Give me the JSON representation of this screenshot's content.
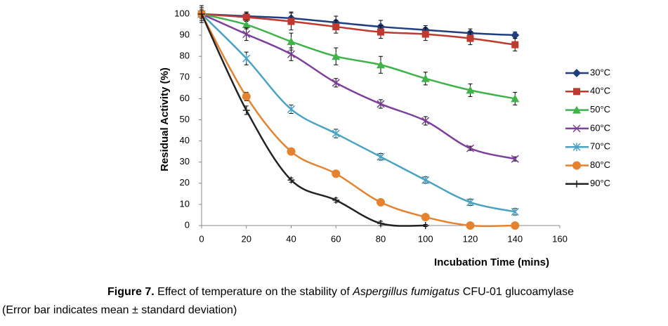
{
  "chart_data": {
    "type": "line",
    "xlabel": "Incubation Time (mins)",
    "ylabel": "Residual Activity (%)",
    "x": [
      0,
      20,
      40,
      60,
      80,
      100,
      120,
      140
    ],
    "xlim": [
      0,
      160
    ],
    "xticks": [
      0,
      20,
      40,
      60,
      80,
      100,
      120,
      140,
      160
    ],
    "ylim": [
      0,
      100
    ],
    "yticks": [
      0,
      10,
      20,
      30,
      40,
      50,
      60,
      70,
      80,
      90,
      100
    ],
    "grid": false,
    "legend": "right",
    "smooth": true,
    "series": [
      {
        "name": "30°C",
        "color": "#1f3f7f",
        "marker": "diamond",
        "values": [
          100,
          99,
          98,
          96,
          94,
          92.5,
          91,
          90
        ],
        "errors": [
          4,
          2,
          3,
          3,
          3,
          2,
          2,
          1.5
        ]
      },
      {
        "name": "40°C",
        "color": "#c0392f",
        "marker": "square",
        "values": [
          100,
          98.5,
          96.5,
          94,
          91.5,
          90.5,
          88.5,
          85.5
        ],
        "errors": [
          3,
          2,
          4,
          3,
          3,
          3,
          3,
          3
        ]
      },
      {
        "name": "50°C",
        "color": "#3fb34a",
        "marker": "triangle",
        "values": [
          100,
          95,
          87,
          80,
          76,
          69.5,
          64,
          60
        ],
        "errors": [
          2,
          2,
          4,
          4,
          4,
          3,
          3,
          3
        ]
      },
      {
        "name": "60°C",
        "color": "#7d3f99",
        "marker": "x",
        "values": [
          100,
          90.5,
          81,
          67.5,
          57.5,
          49.5,
          36.5,
          31.5
        ],
        "errors": [
          2,
          3,
          3,
          2,
          2,
          2,
          1,
          1
        ]
      },
      {
        "name": "70°C",
        "color": "#4aa3c2",
        "marker": "star",
        "values": [
          100,
          79,
          55,
          43.5,
          32.5,
          21.5,
          11,
          6.5
        ],
        "errors": [
          2,
          3,
          2,
          2,
          1.5,
          1.5,
          1.5,
          1.5
        ]
      },
      {
        "name": "80°C",
        "color": "#e5822f",
        "marker": "circle",
        "values": [
          100,
          61,
          35,
          24.5,
          11,
          4,
          0,
          0
        ],
        "errors": [
          2,
          2,
          1,
          1,
          1,
          1,
          0.5,
          0.5
        ]
      },
      {
        "name": "90°C",
        "color": "#222222",
        "marker": "plus",
        "values": [
          100,
          54.5,
          21.5,
          12,
          1,
          0,
          null,
          null
        ],
        "errors": [
          4,
          2,
          1,
          1,
          1,
          0.5,
          null,
          null
        ]
      }
    ]
  },
  "caption": {
    "label": "Figure 7.",
    "text_before": "Effect of temperature on the stability of",
    "italic": "Aspergillus fumigatus",
    "text_after": "CFU-01 glucoamylase",
    "note": "(Error bar indicates mean ± standard deviation)"
  }
}
